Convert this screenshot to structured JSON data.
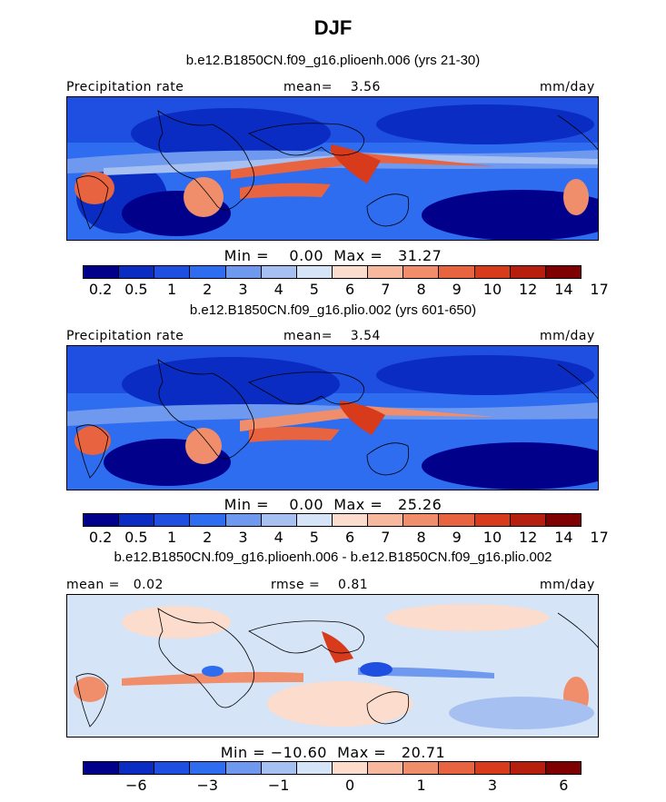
{
  "title": "DJF",
  "panels": [
    {
      "subtitle": "b.e12.B1850CN.f09_g16.plioenh.006 (yrs 21-30)",
      "left_label": "Precipitation rate",
      "center_label": "mean=    3.56",
      "right_label": "mm/day",
      "minmax": "Min =    0.00  Max =   31.27"
    },
    {
      "subtitle": "b.e12.B1850CN.f09_g16.plio.002 (yrs 601-650)",
      "left_label": "Precipitation rate",
      "center_label": "mean=    3.54",
      "right_label": "mm/day",
      "minmax": "Min =    0.00  Max =   25.26"
    },
    {
      "subtitle": "b.e12.B1850CN.f09_g16.plioenh.006 - b.e12.B1850CN.f09_g16.plio.002",
      "left_label": "mean =   0.02",
      "center_label": "rmse =    0.81",
      "right_label": "mm/day",
      "minmax": "Min = −10.60  Max =   20.71"
    }
  ],
  "colorbar_abs": {
    "colors": [
      "#00008b",
      "#0a2cc2",
      "#1e4fe0",
      "#2e6cf0",
      "#6f98ef",
      "#a6c0f2",
      "#d6e4f8",
      "#fbdccd",
      "#f8b89e",
      "#f08e6c",
      "#e8633f",
      "#d83a1c",
      "#b61e0e",
      "#7e0000"
    ],
    "labels": [
      "0.2",
      "0.5",
      "1",
      "2",
      "3",
      "4",
      "5",
      "6",
      "7",
      "8",
      "9",
      "10",
      "12",
      "14",
      "17"
    ]
  },
  "colorbar_diff": {
    "colors": [
      "#00008b",
      "#0a2cc2",
      "#1e4fe0",
      "#2e6cf0",
      "#6f98ef",
      "#a6c0f2",
      "#d6e4f8",
      "#fbdccd",
      "#f8b89e",
      "#f08e6c",
      "#e8633f",
      "#d83a1c",
      "#b61e0e",
      "#7e0000"
    ],
    "labels": [
      "−6",
      "−3",
      "−1",
      "0",
      "1",
      "3",
      "6"
    ]
  }
}
